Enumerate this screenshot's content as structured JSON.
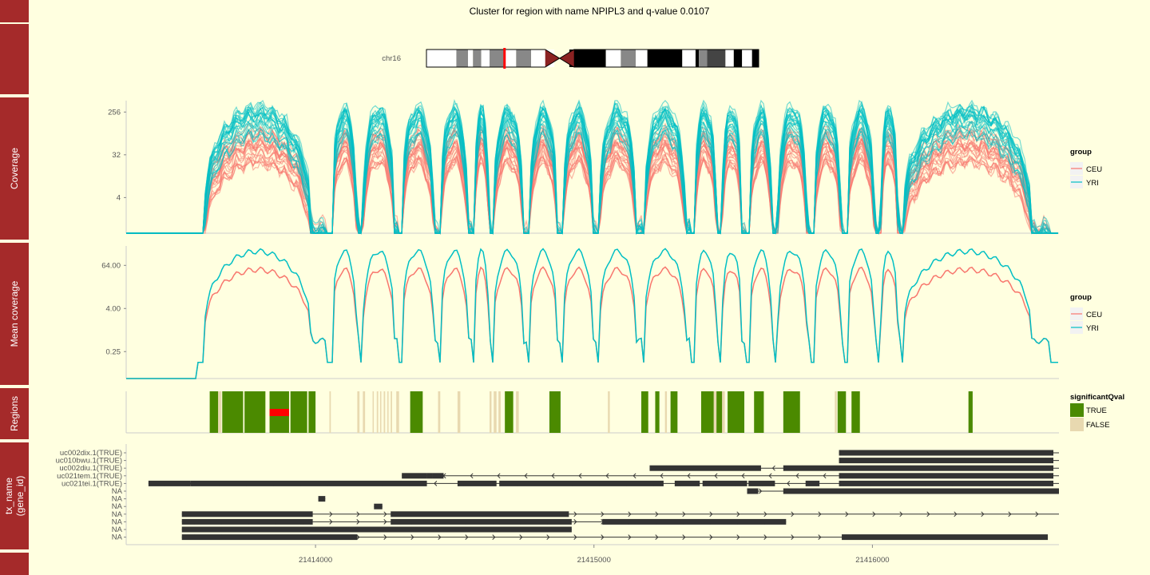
{
  "title": "Cluster for region with name NPIPL3 and q-value 0.0107",
  "ideogram": {
    "chrom": "chr16",
    "bands": [
      {
        "start": 0,
        "end": 0.09,
        "color": "#ffffff"
      },
      {
        "start": 0.09,
        "end": 0.125,
        "color": "#888888"
      },
      {
        "start": 0.125,
        "end": 0.14,
        "color": "#ffffff"
      },
      {
        "start": 0.14,
        "end": 0.165,
        "color": "#888888"
      },
      {
        "start": 0.165,
        "end": 0.19,
        "color": "#ffffff"
      },
      {
        "start": 0.19,
        "end": 0.235,
        "color": "#888888"
      },
      {
        "start": 0.235,
        "end": 0.27,
        "color": "#ffffff"
      },
      {
        "start": 0.27,
        "end": 0.315,
        "color": "#888888"
      },
      {
        "start": 0.315,
        "end": 0.385,
        "color": "#ffffff"
      },
      {
        "start": 0.385,
        "end": 0.43,
        "color": "#8b2222"
      },
      {
        "start": 0.43,
        "end": 0.54,
        "color": "#000000"
      },
      {
        "start": 0.54,
        "end": 0.585,
        "color": "#ffffff"
      },
      {
        "start": 0.585,
        "end": 0.63,
        "color": "#888888"
      },
      {
        "start": 0.63,
        "end": 0.665,
        "color": "#ffffff"
      },
      {
        "start": 0.665,
        "end": 0.77,
        "color": "#000000"
      },
      {
        "start": 0.77,
        "end": 0.81,
        "color": "#ffffff"
      },
      {
        "start": 0.81,
        "end": 0.82,
        "color": "#000000"
      },
      {
        "start": 0.82,
        "end": 0.845,
        "color": "#888888"
      },
      {
        "start": 0.845,
        "end": 0.9,
        "color": "#444444"
      },
      {
        "start": 0.9,
        "end": 0.925,
        "color": "#ffffff"
      },
      {
        "start": 0.925,
        "end": 0.95,
        "color": "#000000"
      },
      {
        "start": 0.95,
        "end": 0.98,
        "color": "#ffffff"
      },
      {
        "start": 0.98,
        "end": 1.0,
        "color": "#000000"
      }
    ],
    "centromere": 0.42,
    "highlight": 0.235
  },
  "colors": {
    "background": "#ffffe0",
    "strip": "#a52a2a",
    "ceu": "#f8766d",
    "yri": "#00bfc4",
    "sig_true": "#4b8a00",
    "sig_false": "#e8d9b0",
    "highlight": "#ff0000",
    "gene": "#333333"
  },
  "chart_data": [
    {
      "facet": "Coverage",
      "type": "line",
      "x_ticks": [
        "21414000",
        "21415000",
        "21416000"
      ],
      "y_ticks": [
        "4",
        "32",
        "256"
      ],
      "y_scale": "log2",
      "legend": {
        "title": "group",
        "entries": [
          "CEU",
          "YRI"
        ]
      },
      "samples": {
        "CEU": 22,
        "YRI": 22
      }
    },
    {
      "facet": "Mean coverage",
      "type": "line",
      "x_ticks": [
        "21414000",
        "21415000",
        "21416000"
      ],
      "y_ticks": [
        "0.25",
        "4.00",
        "64.00"
      ],
      "y_scale": "log2",
      "legend": {
        "title": "group",
        "entries": [
          "CEU",
          "YRI"
        ]
      }
    },
    {
      "facet": "Regions",
      "type": "bar",
      "legend": {
        "title": "significantQval",
        "entries": [
          "TRUE",
          "FALSE"
        ]
      },
      "significant": [
        [
          21413620,
          21413650
        ],
        [
          21413665,
          21413740
        ],
        [
          21413745,
          21413820
        ],
        [
          21413835,
          21413905
        ],
        [
          21413910,
          21413970
        ],
        [
          21413975,
          21414000
        ],
        [
          21414340,
          21414385
        ],
        [
          21414680,
          21414710
        ],
        [
          21414840,
          21414880
        ],
        [
          21415170,
          21415195
        ],
        [
          21415220,
          21415235
        ],
        [
          21415275,
          21415300
        ],
        [
          21415385,
          21415430
        ],
        [
          21415440,
          21415460
        ],
        [
          21415480,
          21415540
        ],
        [
          21415575,
          21415610
        ],
        [
          21415680,
          21415740
        ],
        [
          21415875,
          21415905
        ],
        [
          21415925,
          21415955
        ],
        [
          21416345,
          21416360
        ]
      ],
      "non_significant": [
        [
          21413650,
          21413662
        ],
        [
          21414050,
          21414055
        ],
        [
          21414150,
          21414158
        ],
        [
          21414170,
          21414178
        ],
        [
          21414205,
          21414208
        ],
        [
          21414220,
          21414225
        ],
        [
          21414232,
          21414236
        ],
        [
          21414245,
          21414250
        ],
        [
          21414258,
          21414262
        ],
        [
          21414270,
          21414275
        ],
        [
          21414290,
          21414300
        ],
        [
          21414440,
          21414448
        ],
        [
          21414510,
          21414520
        ],
        [
          21414625,
          21414632
        ],
        [
          21414640,
          21414650
        ],
        [
          21414657,
          21414665
        ],
        [
          21414720,
          21414730
        ],
        [
          21415050,
          21415057
        ],
        [
          21415255,
          21415262
        ],
        [
          21415430,
          21415440
        ],
        [
          21415460,
          21415470
        ],
        [
          21415865,
          21415872
        ],
        [
          21415880,
          21415888
        ],
        [
          21415896,
          21415900
        ]
      ],
      "highlight": [
        21413835,
        21413905
      ]
    },
    {
      "facet": "tx_name\n(gene_id)",
      "facet_lines": [
        "tx_name",
        "(gene_id)"
      ],
      "type": "bar",
      "track_labels": [
        "uc002dix.1(TRUE)",
        "uc010bwu.1(TRUE)",
        "uc002diu.1(TRUE)",
        "uc021tem.1(TRUE)",
        "uc021tei.1(TRUE)",
        "NA",
        "NA",
        "NA",
        "NA",
        "NA",
        "NA",
        "NA"
      ],
      "tracks": [
        {
          "line": [
            21415880,
            21416670
          ],
          "strand": "-",
          "exons": [
            [
              21415880,
              21416650
            ]
          ]
        },
        {
          "line": [
            21415880,
            21416670
          ],
          "strand": "-",
          "exons": [
            [
              21415880,
              21416650
            ]
          ]
        },
        {
          "line": [
            21415200,
            21416670
          ],
          "strand": "-",
          "exons": [
            [
              21415200,
              21415600
            ],
            [
              21415680,
              21416650
            ]
          ]
        },
        {
          "line": [
            21414310,
            21416670
          ],
          "strand": "-",
          "exons": [
            [
              21414310,
              21414400
            ],
            [
              21414400,
              21414420
            ],
            [
              21414420,
              21414460
            ],
            [
              21415880,
              21416650
            ]
          ]
        },
        {
          "line": [
            21413400,
            21416670
          ],
          "strand": "-",
          "exons": [
            [
              21413400,
              21413550
            ],
            [
              21413550,
              21414400
            ],
            [
              21414510,
              21414650
            ],
            [
              21414660,
              21415250
            ],
            [
              21415290,
              21415380
            ],
            [
              21415390,
              21415550
            ],
            [
              21415555,
              21415650
            ],
            [
              21415760,
              21415810
            ],
            [
              21415880,
              21416650
            ]
          ]
        },
        {
          "line": [
            21415550,
            21416670
          ],
          "strand": "+",
          "exons": [
            [
              21415550,
              21415590
            ],
            [
              21415680,
              21416670
            ]
          ]
        },
        {
          "line": [
            21414010,
            21414035
          ],
          "strand": "",
          "exons": [
            [
              21414010,
              21414035
            ]
          ]
        },
        {
          "line": [
            21414210,
            21414240
          ],
          "strand": "",
          "exons": [
            [
              21414210,
              21414240
            ]
          ]
        },
        {
          "line": [
            21413520,
            21416670
          ],
          "strand": "+",
          "exons": [
            [
              21413520,
              21413990
            ],
            [
              21414270,
              21414910
            ]
          ]
        },
        {
          "line": [
            21413520,
            21415690
          ],
          "strand": "+",
          "exons": [
            [
              21413520,
              21413990
            ],
            [
              21414270,
              21414920
            ],
            [
              21415030,
              21415690
            ]
          ]
        },
        {
          "line": [
            21413520,
            21414920
          ],
          "strand": "",
          "exons": [
            [
              21413520,
              21414920
            ]
          ]
        },
        {
          "line": [
            21413520,
            21416630
          ],
          "strand": "+",
          "exons": [
            [
              21413520,
              21414150
            ],
            [
              21415890,
              21416630
            ]
          ]
        }
      ]
    }
  ]
}
